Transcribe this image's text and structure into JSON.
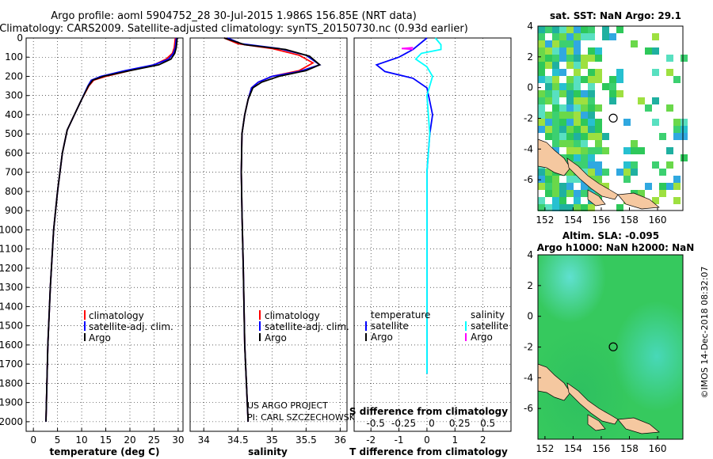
{
  "header": {
    "title_line1": "Argo profile: aoml 5904752_28 30-Jul-2015 1.986S 156.85E (NRT data)",
    "title_line2": "Climatology: CARS2009. Satellite-adjusted climatology: synTS_20150730.nc (0.93d earlier)"
  },
  "colors": {
    "climatology": "#ff0000",
    "satellite": "#0000ff",
    "argo": "#000000",
    "sat_salinity": "#00ffff",
    "argo_salinity": "#ff00ff",
    "land": "#f5c8a0",
    "sea_missing": "#ffffff"
  },
  "credits": {
    "project": "US ARGO PROJECT",
    "pi": "PI: CARL SZCZECHOWSKI",
    "stamp": "©IMOS 14-Dec-2018 08:32:07"
  },
  "chart_data": [
    {
      "id": "temperature",
      "type": "line",
      "xlabel": "temperature (deg C)",
      "ylabel": "depth",
      "xlim": [
        -1.5,
        31
      ],
      "ylim": [
        0,
        2050
      ],
      "y_inverted": true,
      "grid": true,
      "xticks": [
        "0",
        "5",
        "10",
        "15",
        "20",
        "25",
        "30"
      ],
      "xtick_values": [
        0,
        5,
        10,
        15,
        20,
        25,
        30
      ],
      "yticks": [
        "0",
        "100",
        "200",
        "300",
        "400",
        "500",
        "600",
        "700",
        "800",
        "900",
        "1000",
        "1100",
        "1200",
        "1300",
        "1400",
        "1500",
        "1600",
        "1700",
        "1800",
        "1900",
        "2000"
      ],
      "ytick_values": [
        0,
        100,
        200,
        300,
        400,
        500,
        600,
        700,
        800,
        900,
        1000,
        1100,
        1200,
        1300,
        1400,
        1500,
        1600,
        1700,
        1800,
        1900,
        2000
      ],
      "legend": [
        "climatology",
        "satellite-adj. clim.",
        "Argo"
      ],
      "legend_position": "bottom-center",
      "series": [
        {
          "name": "climatology",
          "color": "#ff0000",
          "points": [
            [
              29.4,
              0
            ],
            [
              29.2,
              50
            ],
            [
              28.8,
              80
            ],
            [
              27.5,
              110
            ],
            [
              25,
              140
            ],
            [
              20,
              170
            ],
            [
              15,
              200
            ],
            [
              12.5,
              220
            ],
            [
              11.5,
              250
            ],
            [
              10,
              320
            ],
            [
              8.5,
              400
            ],
            [
              7,
              480
            ],
            [
              6,
              600
            ],
            [
              5,
              800
            ],
            [
              4.2,
              1000
            ],
            [
              3.5,
              1300
            ],
            [
              3,
              1600
            ],
            [
              2.6,
              2000
            ]
          ]
        },
        {
          "name": "satellite-adj. clim.",
          "color": "#0000ff",
          "points": [
            [
              29.6,
              0
            ],
            [
              29.4,
              50
            ],
            [
              29,
              80
            ],
            [
              28,
              110
            ],
            [
              25,
              140
            ],
            [
              19,
              170
            ],
            [
              14,
              200
            ],
            [
              12,
              220
            ],
            [
              11.3,
              250
            ],
            [
              10,
              320
            ],
            [
              8.5,
              400
            ],
            [
              7,
              480
            ],
            [
              6,
              600
            ],
            [
              5,
              800
            ],
            [
              4.2,
              1000
            ],
            [
              3.5,
              1300
            ],
            [
              3,
              1600
            ],
            [
              2.6,
              2000
            ]
          ]
        },
        {
          "name": "Argo",
          "color": "#000000",
          "points": [
            [
              29.8,
              0
            ],
            [
              29.6,
              50
            ],
            [
              29.3,
              80
            ],
            [
              28.5,
              110
            ],
            [
              26,
              140
            ],
            [
              20,
              170
            ],
            [
              14.5,
              200
            ],
            [
              12.3,
              220
            ],
            [
              11.4,
              250
            ],
            [
              10,
              320
            ],
            [
              8.5,
              400
            ],
            [
              7,
              480
            ],
            [
              6,
              600
            ],
            [
              5,
              800
            ],
            [
              4.2,
              1000
            ],
            [
              3.5,
              1300
            ],
            [
              3,
              1600
            ],
            [
              2.6,
              2000
            ]
          ]
        }
      ]
    },
    {
      "id": "salinity",
      "type": "line",
      "xlabel": "salinity",
      "ylabel": "depth",
      "xlim": [
        33.8,
        36.1
      ],
      "ylim": [
        0,
        2050
      ],
      "y_inverted": true,
      "grid": true,
      "xticks": [
        "34",
        "34.5",
        "35",
        "35.5",
        "36"
      ],
      "xtick_values": [
        34,
        34.5,
        35,
        35.5,
        36
      ],
      "legend": [
        "climatology",
        "satellite-adj. clim.",
        "Argo"
      ],
      "legend_position": "bottom-center",
      "series": [
        {
          "name": "climatology",
          "color": "#ff0000",
          "points": [
            [
              34.3,
              0
            ],
            [
              34.5,
              30
            ],
            [
              35,
              55
            ],
            [
              35.4,
              90
            ],
            [
              35.6,
              130
            ],
            [
              35.4,
              170
            ],
            [
              35,
              200
            ],
            [
              34.8,
              230
            ],
            [
              34.7,
              260
            ],
            [
              34.65,
              320
            ],
            [
              34.6,
              400
            ],
            [
              34.56,
              500
            ],
            [
              34.55,
              700
            ],
            [
              34.56,
              900
            ],
            [
              34.58,
              1200
            ],
            [
              34.6,
              1600
            ],
            [
              34.65,
              2000
            ]
          ]
        },
        {
          "name": "satellite-adj. clim.",
          "color": "#0000ff",
          "points": [
            [
              34.35,
              0
            ],
            [
              34.55,
              30
            ],
            [
              35.1,
              55
            ],
            [
              35.5,
              90
            ],
            [
              35.7,
              140
            ],
            [
              35.4,
              175
            ],
            [
              35.0,
              200
            ],
            [
              34.8,
              230
            ],
            [
              34.7,
              260
            ],
            [
              34.65,
              320
            ],
            [
              34.6,
              400
            ],
            [
              34.56,
              500
            ],
            [
              34.55,
              700
            ],
            [
              34.56,
              900
            ],
            [
              34.58,
              1200
            ],
            [
              34.6,
              1600
            ],
            [
              34.65,
              2000
            ]
          ]
        },
        {
          "name": "Argo",
          "color": "#000000",
          "points": [
            [
              34.3,
              0
            ],
            [
              34.6,
              35
            ],
            [
              35.2,
              60
            ],
            [
              35.55,
              95
            ],
            [
              35.7,
              140
            ],
            [
              35.5,
              170
            ],
            [
              35.1,
              200
            ],
            [
              34.85,
              230
            ],
            [
              34.72,
              260
            ],
            [
              34.65,
              320
            ],
            [
              34.6,
              400
            ],
            [
              34.56,
              500
            ],
            [
              34.55,
              700
            ],
            [
              34.56,
              900
            ],
            [
              34.58,
              1200
            ],
            [
              34.6,
              1600
            ],
            [
              34.65,
              2000
            ]
          ]
        }
      ]
    },
    {
      "id": "difference",
      "type": "line",
      "xlabel_top": "S difference from climatology",
      "xlabel": "T difference from climatology",
      "xlim": [
        -2.6,
        3
      ],
      "ylim": [
        0,
        2050
      ],
      "y_inverted": true,
      "grid": true,
      "xticks": [
        "-2",
        "-1",
        "0",
        "1",
        "2"
      ],
      "xtick_values": [
        -2,
        -1,
        0,
        1,
        2
      ],
      "xticks_top": [
        "-0.5",
        "-0.25",
        "0",
        "0.25",
        "0.5"
      ],
      "legend_left_title": "temperature",
      "legend_right_title": "salinity",
      "legend": [
        "satellite",
        "Argo",
        "satellite",
        "Argo"
      ],
      "series": [
        {
          "name": "T satellite",
          "color": "#0000ff",
          "points": [
            [
              0,
              0
            ],
            [
              -0.5,
              60
            ],
            [
              -1,
              100
            ],
            [
              -1.8,
              140
            ],
            [
              -1.5,
              175
            ],
            [
              -0.5,
              210
            ],
            [
              0,
              260
            ],
            [
              0.1,
              330
            ],
            [
              0.2,
              400
            ],
            [
              0.1,
              500
            ],
            [
              0,
              700
            ],
            [
              0,
              1750
            ]
          ]
        },
        {
          "name": "S satellite",
          "color": "#00ffff",
          "points": [
            [
              0.3,
              0
            ],
            [
              0.5,
              35
            ],
            [
              0.5,
              60
            ],
            [
              -0.2,
              80
            ],
            [
              -0.4,
              110
            ],
            [
              0,
              150
            ],
            [
              0.2,
              200
            ],
            [
              0,
              300
            ],
            [
              0.1,
              500
            ],
            [
              0,
              700
            ],
            [
              0,
              1750
            ]
          ]
        },
        {
          "name": "S Argo",
          "color": "#ff00ff",
          "points": [
            [
              -0.5,
              50
            ],
            [
              -0.9,
              55
            ],
            [
              -0.5,
              60
            ]
          ]
        }
      ]
    }
  ],
  "map_sst": {
    "title": "sat. SST: NaN Argo: 29.1",
    "xticks": [
      "152",
      "154",
      "156",
      "158",
      "160"
    ],
    "yticks": [
      "4",
      "2",
      "0",
      "-2",
      "-4",
      "-6"
    ],
    "lon_range": [
      151.5,
      161.8
    ],
    "lat_range": [
      -8,
      4
    ],
    "argo_position": [
      156.85,
      -1.986
    ]
  },
  "map_sla": {
    "title_line1": "Altim. SLA: -0.095",
    "title_line2": "Argo h1000: NaN h2000: NaN",
    "xticks": [
      "152",
      "154",
      "156",
      "158",
      "160"
    ],
    "yticks": [
      "4",
      "2",
      "0",
      "-2",
      "-4",
      "-6"
    ],
    "lon_range": [
      151.5,
      161.8
    ],
    "lat_range": [
      -8,
      4
    ],
    "argo_position": [
      156.85,
      -1.986
    ]
  }
}
